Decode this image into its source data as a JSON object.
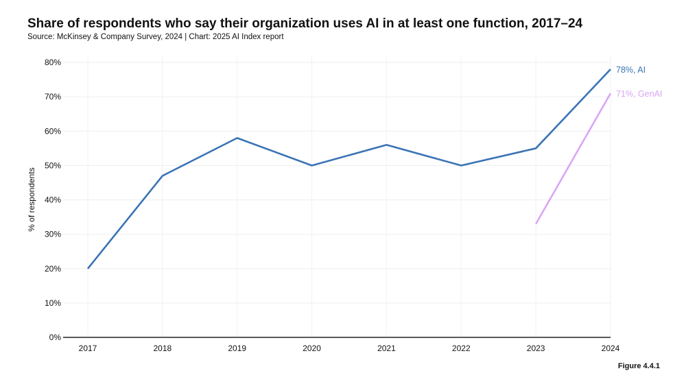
{
  "title": "Share of respondents who say their organization uses AI in at least one function, 2017–24",
  "subtitle": "Source: McKinsey & Company Survey, 2024 | Chart: 2025 AI Index report",
  "figure_label": "Figure 4.4.1",
  "chart_data": {
    "type": "line",
    "title": "Share of respondents who say their organization uses AI in at least one function, 2017–24",
    "xlabel": "",
    "ylabel": "% of respondents",
    "x": [
      2017,
      2018,
      2019,
      2020,
      2021,
      2022,
      2023,
      2024
    ],
    "x_tick_labels": [
      "2017",
      "2018",
      "2019",
      "2020",
      "2021",
      "2022",
      "2023",
      "2024"
    ],
    "ylim": [
      0,
      80
    ],
    "y_ticks": [
      0,
      10,
      20,
      30,
      40,
      50,
      60,
      70,
      80
    ],
    "y_tick_labels": [
      "0%",
      "10%",
      "20%",
      "30%",
      "40%",
      "50%",
      "60%",
      "70%",
      "80%"
    ],
    "grid": true,
    "series": [
      {
        "name": "AI",
        "color": "#3a73b5",
        "x": [
          2017,
          2018,
          2019,
          2020,
          2021,
          2022,
          2023,
          2024
        ],
        "values": [
          20,
          47,
          58,
          50,
          56,
          50,
          55,
          78
        ],
        "end_label": "78%, AI"
      },
      {
        "name": "GenAI",
        "color": "#d9a6f5",
        "x": [
          2023,
          2024
        ],
        "values": [
          33,
          71
        ],
        "end_label": "71%, GenAI"
      }
    ]
  }
}
